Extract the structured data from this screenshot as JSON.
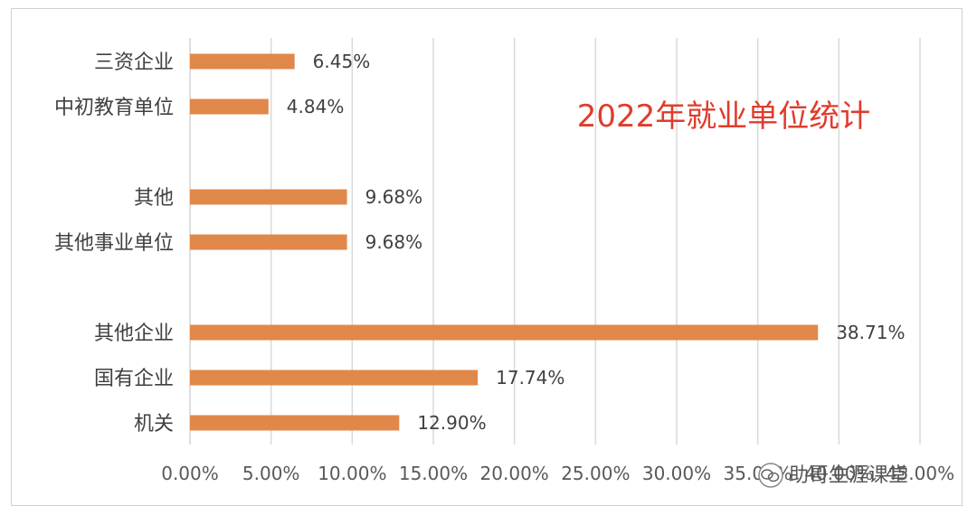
{
  "chart_data": {
    "type": "bar",
    "orientation": "horizontal",
    "title": "2022年就业单位统计",
    "categories": [
      "三资企业",
      "中初教育单位",
      "其他",
      "其他事业单位",
      "其他企业",
      "国有企业",
      "机关"
    ],
    "values": [
      6.45,
      4.84,
      9.68,
      9.68,
      38.71,
      17.74,
      12.9
    ],
    "value_labels": [
      "6.45%",
      "4.84%",
      "9.68%",
      "9.68%",
      "38.71%",
      "17.74%",
      "12.90%"
    ],
    "groups": [
      [
        "三资企业",
        "中初教育单位"
      ],
      [
        "其他",
        "其他事业单位"
      ],
      [
        "其他企业",
        "国有企业",
        "机关"
      ]
    ],
    "xlim": [
      0,
      45
    ],
    "x_ticks": [
      0,
      5,
      10,
      15,
      20,
      25,
      30,
      35,
      40,
      45
    ],
    "x_tick_labels": [
      "0.00%",
      "5.00%",
      "10.00%",
      "15.00%",
      "20.00%",
      "25.00%",
      "30.00%",
      "35.00%",
      "40.00%",
      "45.00%"
    ],
    "grid": "vertical",
    "legend": "none",
    "bar_color": "#e0884a",
    "title_color": "#e03c2c"
  },
  "watermark": {
    "text": "助哥生涯课堂",
    "icon": "wechat-icon"
  }
}
